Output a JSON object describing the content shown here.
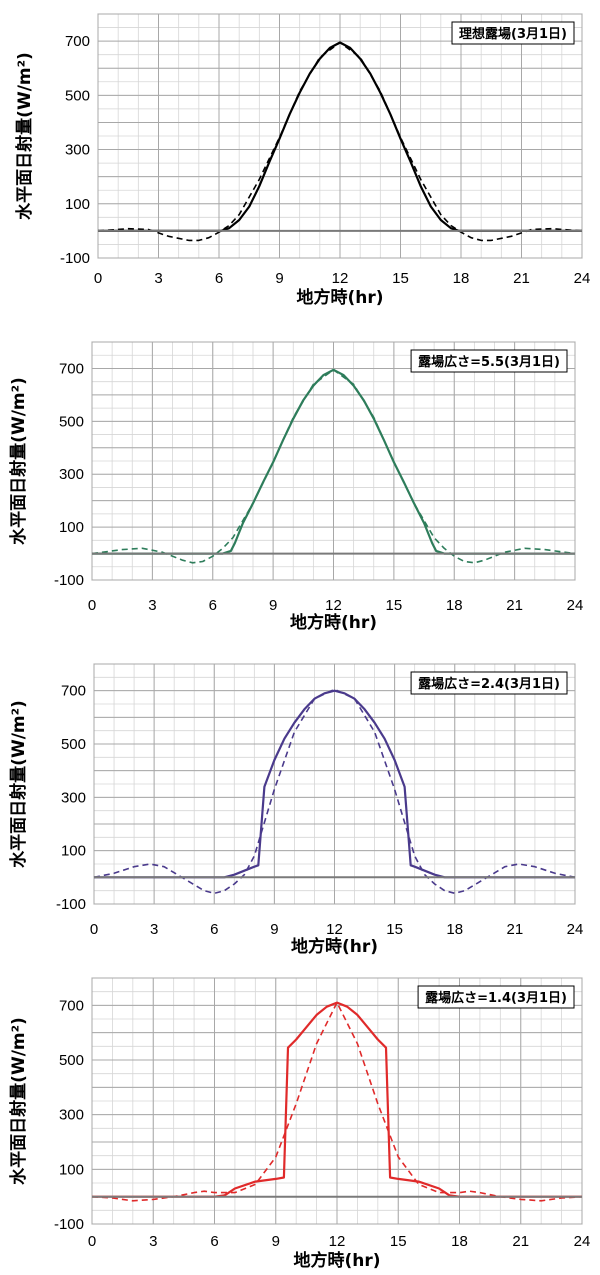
{
  "chart_data": [
    {
      "type": "line",
      "annotation": "理想露場(3月1日)",
      "xlabel": "地方時(hr)",
      "ylabel": "水平面日射量(W/m²)",
      "xlim": [
        0,
        24
      ],
      "ylim": [
        -100,
        800
      ],
      "xticks": [
        0,
        3,
        6,
        9,
        12,
        15,
        18,
        21,
        24
      ],
      "yticks": [
        -100,
        100,
        300,
        500,
        700
      ],
      "grid": true,
      "color": "#000000",
      "series": [
        {
          "style": "solid",
          "x": [
            0,
            6.1,
            6.5,
            7,
            7.5,
            8,
            8.5,
            9,
            9.5,
            10,
            10.5,
            11,
            11.5,
            12,
            12.5,
            13,
            13.5,
            14,
            14.5,
            15,
            15.5,
            16,
            16.5,
            17,
            17.5,
            17.9,
            24
          ],
          "y": [
            0,
            0,
            10,
            40,
            90,
            165,
            255,
            340,
            430,
            510,
            580,
            635,
            675,
            695,
            675,
            635,
            580,
            510,
            430,
            340,
            255,
            165,
            90,
            40,
            10,
            0,
            0
          ]
        },
        {
          "style": "dashed",
          "x": [
            0,
            1.5,
            2.5,
            3.5,
            4.5,
            5,
            5.5,
            6,
            6.5,
            7,
            8,
            9,
            10,
            11,
            12,
            13,
            14,
            15,
            16,
            17,
            17.5,
            18,
            18.5,
            19,
            19.5,
            20.5,
            21.5,
            22.5,
            24
          ],
          "y": [
            0,
            8,
            5,
            -20,
            -35,
            -35,
            -25,
            -5,
            20,
            60,
            190,
            345,
            515,
            640,
            695,
            640,
            515,
            345,
            190,
            60,
            20,
            -5,
            -25,
            -35,
            -35,
            -20,
            5,
            8,
            0
          ]
        },
        {
          "style": "solid-gray",
          "x": [
            0,
            24
          ],
          "y": [
            0,
            0
          ]
        }
      ]
    },
    {
      "type": "line",
      "annotation": "露場広さ=5.5(3月1日)",
      "xlabel": "地方時(hr)",
      "ylabel": "水平面日射量(W/m²)",
      "xlim": [
        0,
        24
      ],
      "ylim": [
        -100,
        800
      ],
      "xticks": [
        0,
        3,
        6,
        9,
        12,
        15,
        18,
        21,
        24
      ],
      "yticks": [
        -100,
        100,
        300,
        500,
        700
      ],
      "grid": true,
      "color": "#2e7d5b",
      "series": [
        {
          "style": "solid",
          "x": [
            0,
            6.5,
            6.9,
            7.1,
            7.5,
            8,
            8.5,
            9,
            9.5,
            10,
            10.5,
            11,
            11.5,
            12,
            12.5,
            13,
            13.5,
            14,
            14.5,
            15,
            15.5,
            16,
            16.5,
            16.9,
            17.1,
            17.5,
            24
          ],
          "y": [
            0,
            0,
            10,
            40,
            115,
            190,
            270,
            345,
            430,
            510,
            580,
            635,
            675,
            695,
            675,
            635,
            580,
            510,
            430,
            345,
            270,
            190,
            115,
            40,
            10,
            0,
            0
          ]
        },
        {
          "style": "dashed",
          "x": [
            0,
            1.5,
            2.5,
            3.5,
            4.5,
            5,
            5.5,
            6,
            6.5,
            7,
            8,
            9,
            10,
            11,
            12,
            13,
            14,
            15,
            16,
            17,
            17.5,
            18,
            18.5,
            19,
            19.5,
            20.5,
            21.5,
            22.5,
            24
          ],
          "y": [
            0,
            15,
            20,
            5,
            -25,
            -35,
            -30,
            -10,
            20,
            60,
            190,
            345,
            515,
            640,
            695,
            640,
            515,
            345,
            190,
            60,
            20,
            -10,
            -30,
            -35,
            -25,
            5,
            20,
            15,
            0
          ]
        },
        {
          "style": "solid-gray",
          "x": [
            0,
            24
          ],
          "y": [
            0,
            0
          ]
        }
      ]
    },
    {
      "type": "line",
      "annotation": "露場広さ=2.4(3月1日)",
      "xlabel": "地方時(hr)",
      "ylabel": "水平面日射量(W/m²)",
      "xlim": [
        0,
        24
      ],
      "ylim": [
        -100,
        800
      ],
      "xticks": [
        0,
        3,
        6,
        9,
        12,
        15,
        18,
        21,
        24
      ],
      "yticks": [
        -100,
        100,
        300,
        500,
        700
      ],
      "grid": true,
      "color": "#4a3a8c",
      "series": [
        {
          "style": "solid",
          "x": [
            0,
            6.5,
            7,
            7.5,
            8,
            8.2,
            8.5,
            9,
            9.5,
            10,
            10.5,
            11,
            11.5,
            12,
            12.5,
            13,
            13.5,
            14,
            14.5,
            15,
            15.5,
            15.8,
            16,
            16.5,
            17,
            17.5,
            24
          ],
          "y": [
            0,
            0,
            10,
            25,
            40,
            45,
            340,
            440,
            520,
            580,
            630,
            670,
            690,
            700,
            690,
            670,
            630,
            580,
            520,
            440,
            340,
            45,
            40,
            25,
            10,
            0,
            0
          ]
        },
        {
          "style": "dashed",
          "x": [
            0,
            1,
            2,
            2.8,
            3.5,
            4.5,
            5.5,
            6,
            6.5,
            7,
            7.5,
            8,
            9,
            10,
            11,
            12,
            13,
            14,
            15,
            16,
            16.5,
            17,
            17.5,
            18,
            18.5,
            19.5,
            20.5,
            21.2,
            22,
            23,
            24
          ],
          "y": [
            0,
            15,
            40,
            50,
            40,
            -5,
            -50,
            -60,
            -50,
            -25,
            10,
            80,
            330,
            545,
            670,
            705,
            670,
            545,
            330,
            80,
            10,
            -25,
            -50,
            -60,
            -50,
            -5,
            40,
            50,
            40,
            15,
            0
          ]
        },
        {
          "style": "solid-gray",
          "x": [
            0,
            24
          ],
          "y": [
            0,
            0
          ]
        }
      ]
    },
    {
      "type": "line",
      "annotation": "露場広さ=1.4(3月1日)",
      "xlabel": "地方時(hr)",
      "ylabel": "水平面日射量(W/m²)",
      "xlim": [
        0,
        24
      ],
      "ylim": [
        -100,
        800
      ],
      "xticks": [
        0,
        3,
        6,
        9,
        12,
        15,
        18,
        21,
        24
      ],
      "yticks": [
        -100,
        100,
        300,
        500,
        700
      ],
      "grid": true,
      "color": "#e02a2a",
      "series": [
        {
          "style": "solid",
          "x": [
            0,
            6,
            6.5,
            7,
            8,
            9,
            9.4,
            9.6,
            10,
            10.5,
            11,
            11.5,
            12,
            12.5,
            13,
            13.5,
            14,
            14.4,
            14.6,
            15,
            16,
            17,
            17.5,
            18,
            24
          ],
          "y": [
            0,
            0,
            5,
            30,
            55,
            65,
            70,
            545,
            575,
            620,
            665,
            695,
            710,
            695,
            665,
            620,
            575,
            545,
            70,
            65,
            55,
            30,
            5,
            0,
            0
          ]
        },
        {
          "style": "dashed",
          "x": [
            0,
            1,
            2,
            3,
            4,
            5,
            5.5,
            6,
            7,
            8,
            9,
            10,
            11,
            12,
            13,
            14,
            15,
            16,
            17,
            18,
            18.5,
            19,
            20,
            21,
            22,
            23,
            24
          ],
          "y": [
            0,
            -5,
            -15,
            -10,
            0,
            15,
            20,
            15,
            15,
            45,
            145,
            340,
            560,
            710,
            560,
            340,
            145,
            45,
            15,
            15,
            20,
            15,
            0,
            -10,
            -15,
            -5,
            0
          ]
        },
        {
          "style": "solid-gray",
          "x": [
            0,
            24
          ],
          "y": [
            0,
            0
          ]
        }
      ]
    }
  ]
}
